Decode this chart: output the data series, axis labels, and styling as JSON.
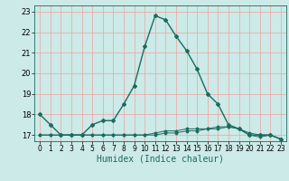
{
  "xlabel": "Humidex (Indice chaleur)",
  "ylabel": "",
  "background_color": "#cceae7",
  "grid_color": "#f0a0a0",
  "line_color": "#1a6b60",
  "xlim": [
    -0.5,
    23.5
  ],
  "ylim": [
    16.7,
    23.3
  ],
  "yticks": [
    17,
    18,
    19,
    20,
    21,
    22,
    23
  ],
  "xticks": [
    0,
    1,
    2,
    3,
    4,
    5,
    6,
    7,
    8,
    9,
    10,
    11,
    12,
    13,
    14,
    15,
    16,
    17,
    18,
    19,
    20,
    21,
    22,
    23
  ],
  "series1_x": [
    0,
    1,
    2,
    3,
    4,
    5,
    6,
    7,
    8,
    9,
    10,
    11,
    12,
    13,
    14,
    15,
    16,
    17,
    18,
    19,
    20,
    21,
    22,
    23
  ],
  "series1_y": [
    18.0,
    17.5,
    17.0,
    17.0,
    17.0,
    17.5,
    17.7,
    17.7,
    18.5,
    19.4,
    21.3,
    22.8,
    22.6,
    21.8,
    21.1,
    20.2,
    19.0,
    18.5,
    17.5,
    17.3,
    17.0,
    17.0,
    17.0,
    16.8
  ],
  "series2_x": [
    0,
    1,
    2,
    3,
    4,
    5,
    6,
    7,
    8,
    9,
    10,
    11,
    12,
    13,
    14,
    15,
    16,
    17,
    18,
    19,
    20,
    21,
    22,
    23
  ],
  "series2_y": [
    17.0,
    17.0,
    17.0,
    17.0,
    17.0,
    17.0,
    17.0,
    17.0,
    17.0,
    17.0,
    17.0,
    17.1,
    17.2,
    17.2,
    17.3,
    17.3,
    17.3,
    17.4,
    17.4,
    17.3,
    17.0,
    16.9,
    17.0,
    16.8
  ],
  "series3_x": [
    0,
    1,
    2,
    3,
    4,
    5,
    6,
    7,
    8,
    9,
    10,
    11,
    12,
    13,
    14,
    15,
    16,
    17,
    18,
    19,
    20,
    21,
    22,
    23
  ],
  "series3_y": [
    17.0,
    17.0,
    17.0,
    17.0,
    17.0,
    17.0,
    17.0,
    17.0,
    17.0,
    17.0,
    17.0,
    17.0,
    17.1,
    17.1,
    17.2,
    17.2,
    17.3,
    17.3,
    17.4,
    17.3,
    17.1,
    17.0,
    17.0,
    16.8
  ],
  "tick_fontsize": 6,
  "xlabel_fontsize": 7
}
